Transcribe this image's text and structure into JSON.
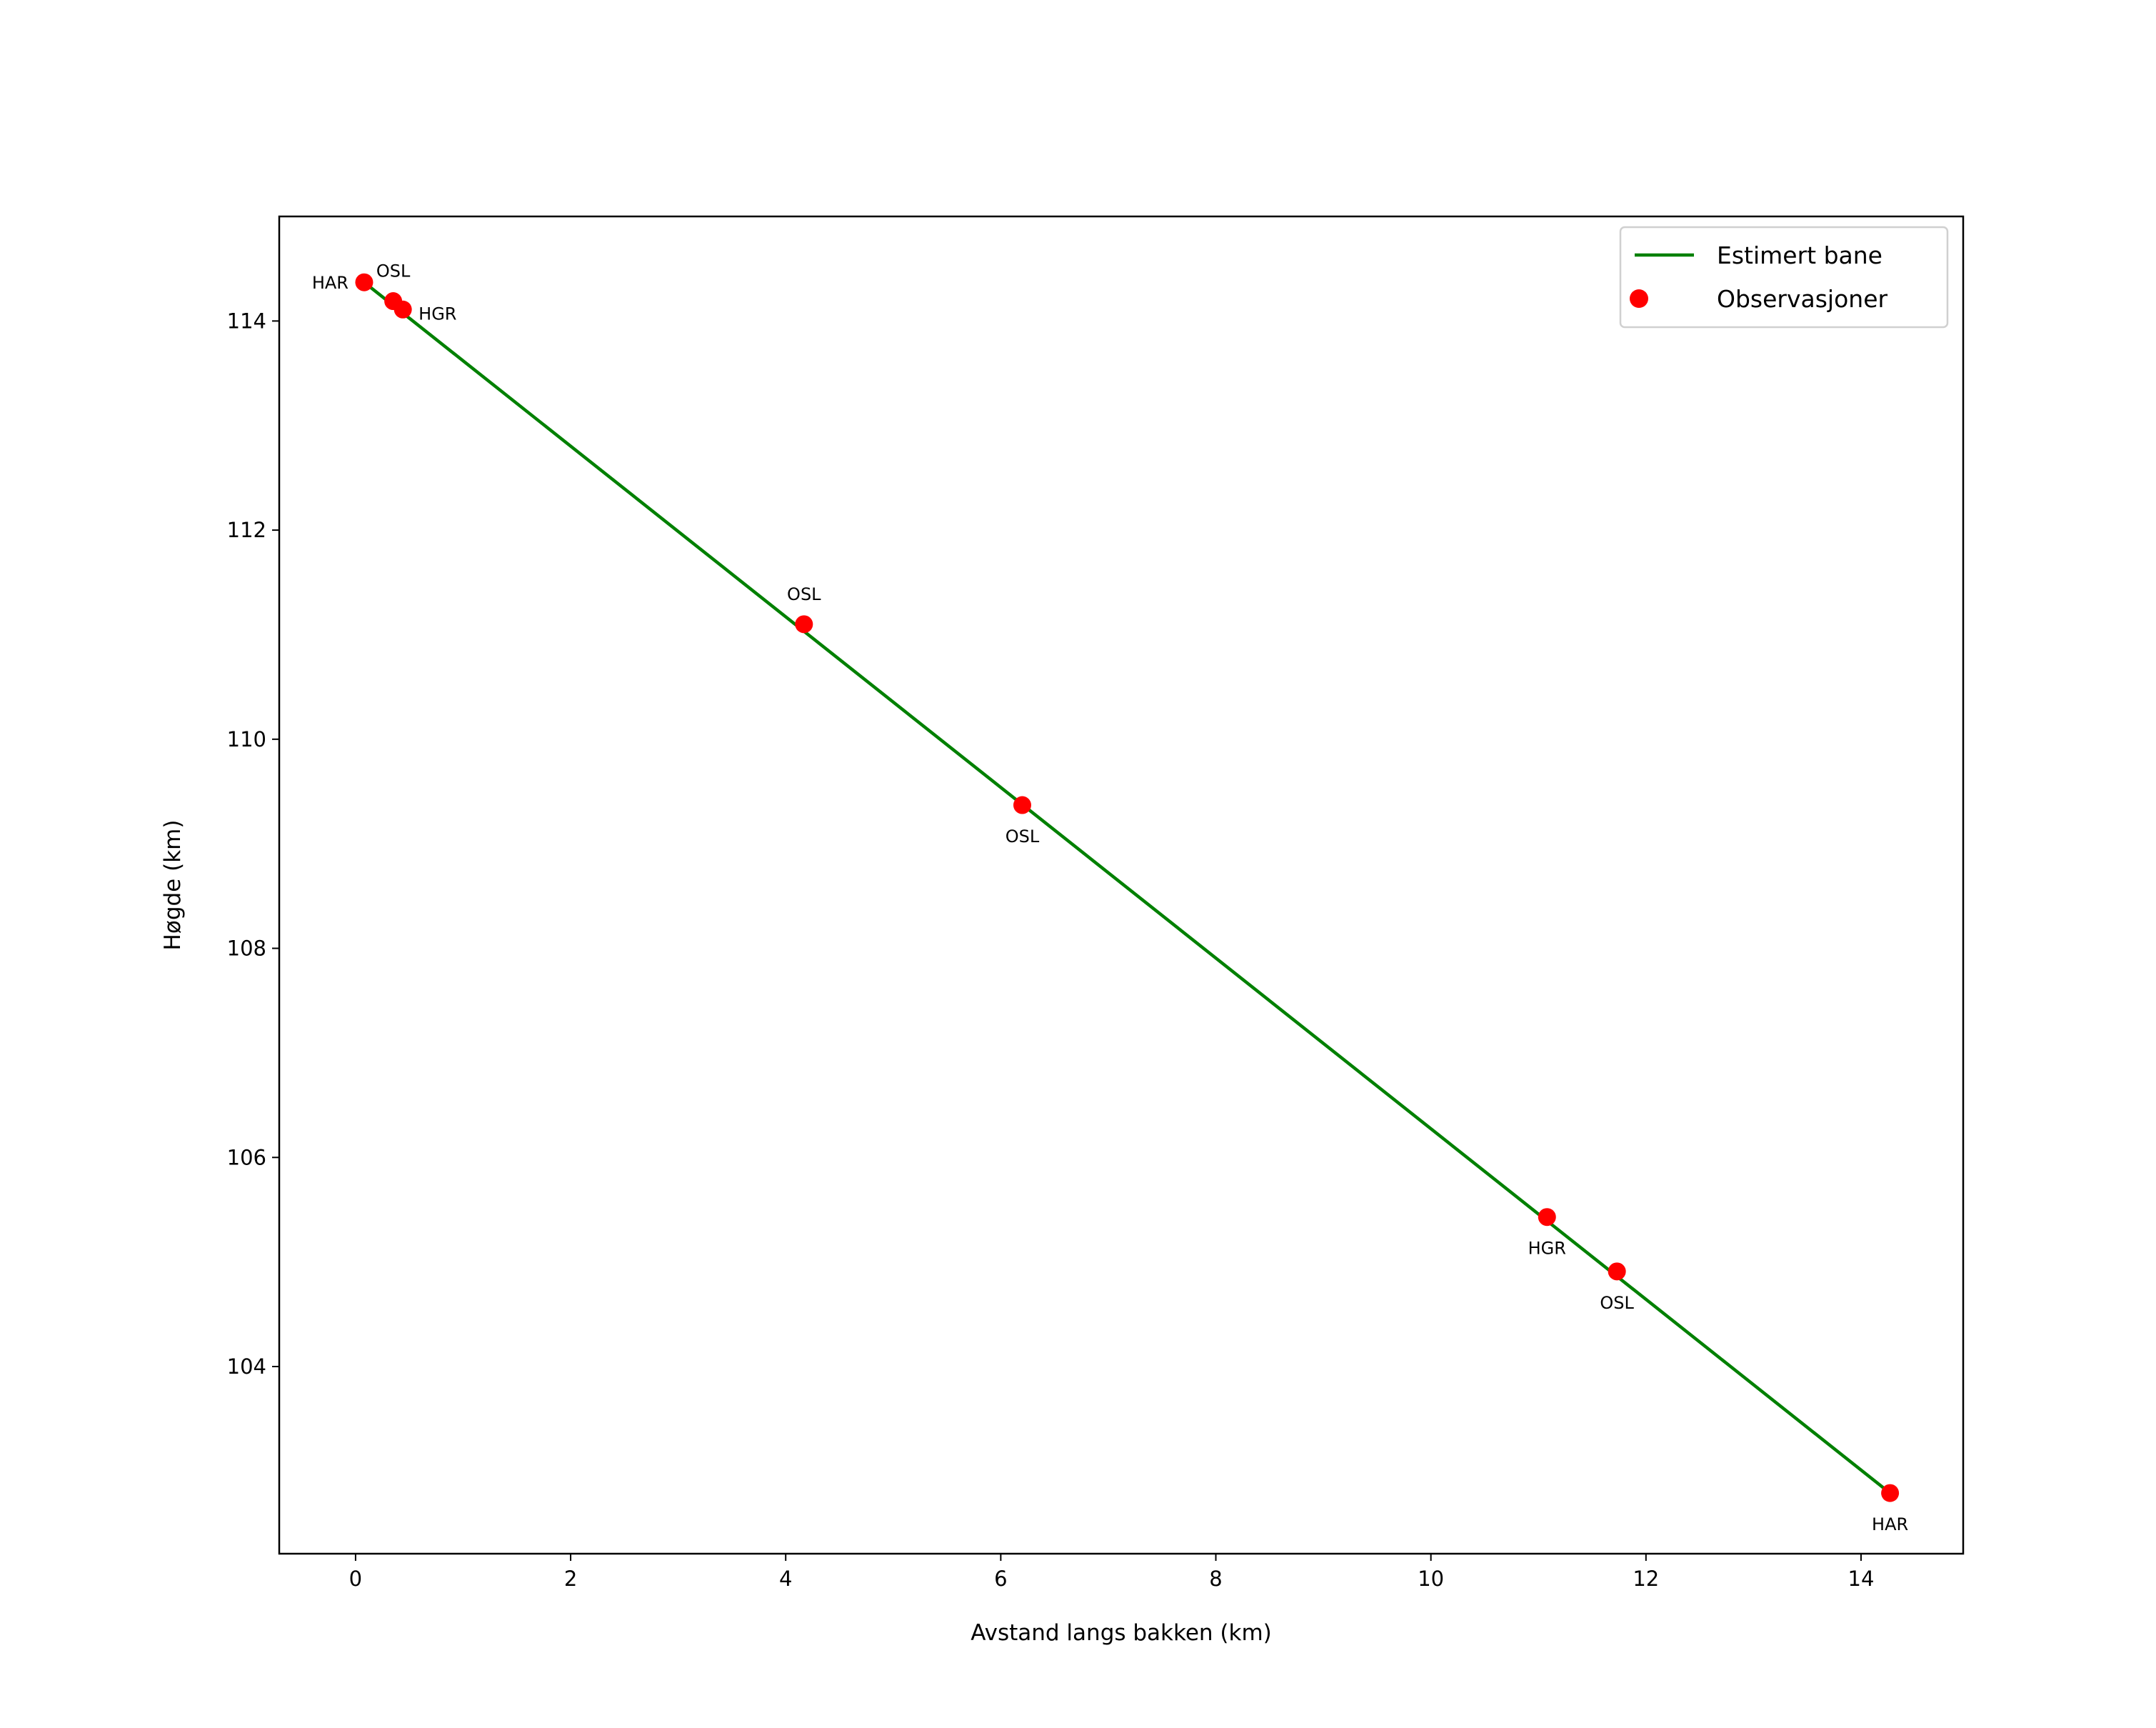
{
  "chart_data": {
    "type": "line",
    "title": "",
    "xlabel": "Avstand langs bakken (km)",
    "ylabel": "Høgde (km)",
    "xlim": [
      -0.71,
      14.95
    ],
    "ylim": [
      102.21,
      115.0
    ],
    "xticks": [
      0,
      2,
      4,
      6,
      8,
      10,
      12,
      14
    ],
    "yticks": [
      104,
      106,
      108,
      110,
      112,
      114
    ],
    "grid": false,
    "legend": {
      "placement": "top-right",
      "entries": [
        "Estimert bane",
        "Observasjoner"
      ]
    },
    "series": [
      {
        "name": "Estimert bane",
        "kind": "line",
        "color": "#008000",
        "x": [
          0.08,
          14.27
        ],
        "y": [
          114.37,
          102.79
        ]
      },
      {
        "name": "Observasjoner",
        "kind": "scatter",
        "color": "#ff0000",
        "points": [
          {
            "x": 0.08,
            "y": 114.37,
            "label": "HAR",
            "pos": "above"
          },
          {
            "x": 0.35,
            "y": 114.19,
            "label": "OSL",
            "pos": "above"
          },
          {
            "x": 0.44,
            "y": 114.11,
            "label": "HGR",
            "pos": "above"
          },
          {
            "x": 4.17,
            "y": 111.1,
            "label": "OSL",
            "pos": "above"
          },
          {
            "x": 6.2,
            "y": 109.37,
            "label": "OSL",
            "pos": "below"
          },
          {
            "x": 11.08,
            "y": 105.43,
            "label": "HGR",
            "pos": "below"
          },
          {
            "x": 11.73,
            "y": 104.91,
            "label": "OSL",
            "pos": "below"
          },
          {
            "x": 14.27,
            "y": 102.79,
            "label": "HAR",
            "pos": "below"
          }
        ]
      }
    ]
  }
}
